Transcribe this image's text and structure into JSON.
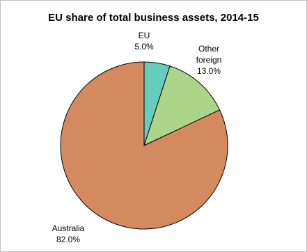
{
  "chart_data": {
    "type": "pie",
    "title": "EU share of total business assets, 2014-15",
    "slices": [
      {
        "name_lines": [
          "EU"
        ],
        "value": 5.0,
        "value_label": "5.0%",
        "color": "#66ccbb"
      },
      {
        "name_lines": [
          "Other",
          "foreign"
        ],
        "value": 13.0,
        "value_label": "13.0%",
        "color": "#add58a"
      },
      {
        "name_lines": [
          "Australia"
        ],
        "value": 82.0,
        "value_label": "82.0%",
        "color": "#d4895f"
      }
    ],
    "start_angle": "12 o'clock",
    "direction": "clockwise",
    "slice_border_color": "#000000",
    "legend": "none"
  }
}
